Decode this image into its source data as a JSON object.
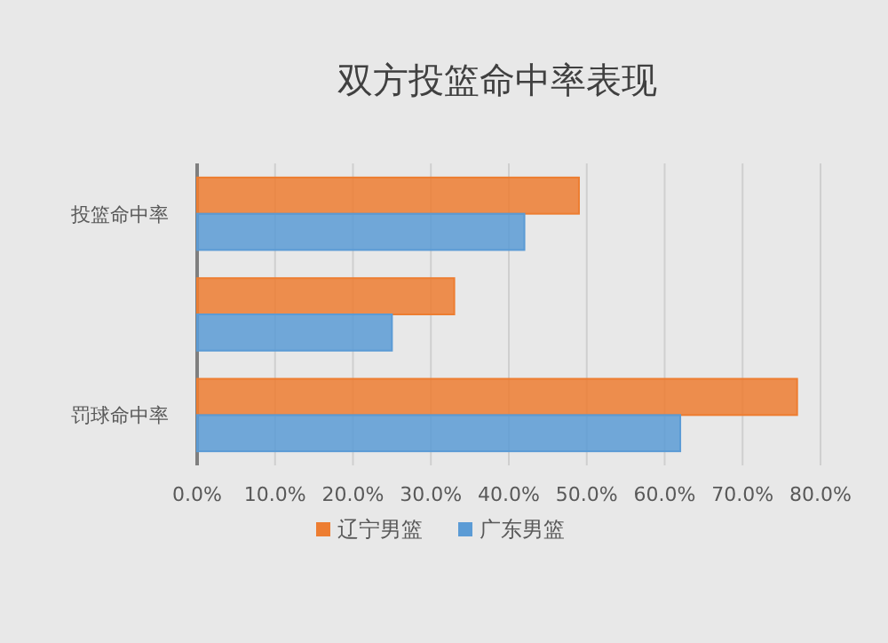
{
  "chart_data": {
    "type": "bar",
    "orientation": "horizontal",
    "title": "双方投篮命中率表现",
    "categories": [
      "投篮命中率",
      null,
      "罚球命中率"
    ],
    "series": [
      {
        "name": "辽宁男篮",
        "color": "#ed7d31",
        "values": [
          49,
          33,
          77
        ]
      },
      {
        "name": "广东男篮",
        "color": "#5b9bd5",
        "values": [
          42,
          25,
          62
        ]
      }
    ],
    "xlim": [
      0,
      80
    ],
    "xticks": [
      {
        "value": 0,
        "label": "0.0%"
      },
      {
        "value": 10,
        "label": "10.0%"
      },
      {
        "value": 20,
        "label": "20.0%"
      },
      {
        "value": 30,
        "label": "30.0%"
      },
      {
        "value": 40,
        "label": "40.0%"
      },
      {
        "value": 50,
        "label": "50.0%"
      },
      {
        "value": 60,
        "label": "60.0%"
      },
      {
        "value": 70,
        "label": "70.0%"
      },
      {
        "value": 80,
        "label": "80.0%"
      }
    ],
    "grid": "x",
    "legend": "bottom"
  }
}
